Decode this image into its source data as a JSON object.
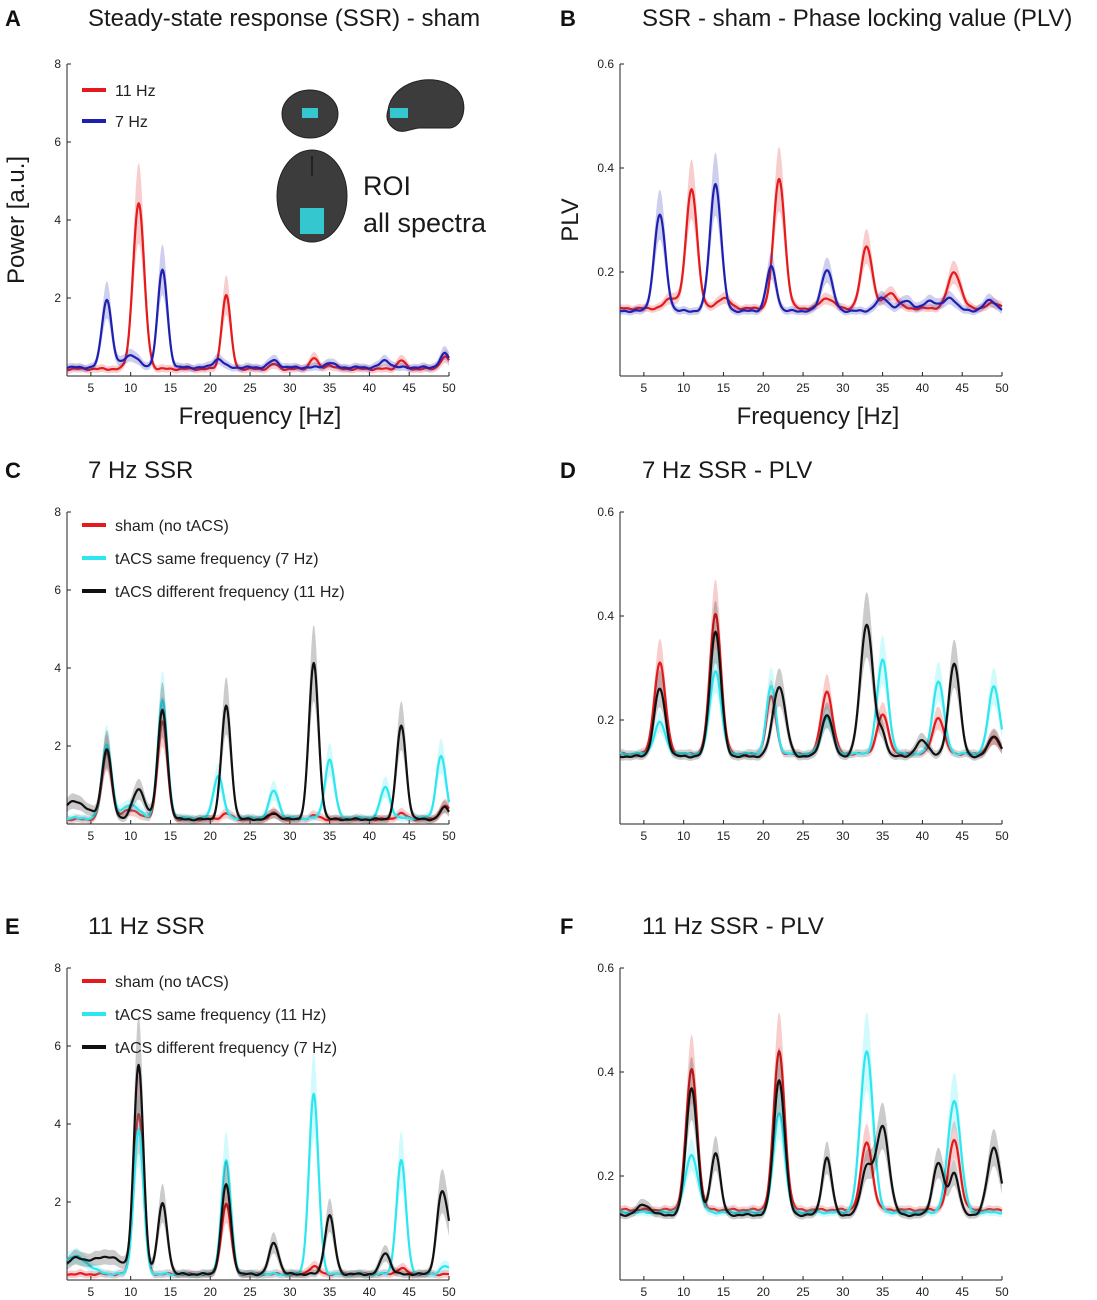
{
  "colors": {
    "red": "#e41a1c",
    "blue": "#2020b0",
    "cyan": "#2ee6f0",
    "black": "#111111",
    "roi": "#33d6e0"
  },
  "roi": {
    "line1": "ROI",
    "line2": "all spectra"
  },
  "chart_data": [
    {
      "id": "A",
      "letter": "A",
      "type": "line",
      "title": "Steady-state response (SSR) - sham",
      "xlabel": "Frequency [Hz]",
      "ylabel": "Power [a.u.]",
      "xlim": [
        2,
        50
      ],
      "ylim": [
        0,
        8
      ],
      "xticks": [
        5,
        10,
        15,
        20,
        25,
        30,
        35,
        40,
        45,
        50
      ],
      "yticks": [
        2,
        4,
        6,
        8
      ],
      "legend": "top-left",
      "series": [
        {
          "name": "11 Hz",
          "color": "red",
          "base": 0.18,
          "peaks": [
            [
              11,
              4.25,
              0.7
            ],
            [
              22,
              1.9,
              0.55
            ],
            [
              28,
              0.12,
              0.5
            ],
            [
              33,
              0.28,
              0.5
            ],
            [
              35,
              0.1,
              0.5
            ],
            [
              44,
              0.22,
              0.5
            ],
            [
              49.5,
              0.3,
              0.6
            ]
          ]
        },
        {
          "name": "7 Hz",
          "color": "blue",
          "base": 0.22,
          "peaks": [
            [
              7,
              1.75,
              0.6
            ],
            [
              10,
              0.32,
              0.9
            ],
            [
              14,
              2.5,
              0.6
            ],
            [
              21,
              0.22,
              0.6
            ],
            [
              28,
              0.18,
              0.6
            ],
            [
              35,
              0.12,
              0.6
            ],
            [
              42,
              0.18,
              0.6
            ],
            [
              49.5,
              0.35,
              0.6
            ]
          ]
        }
      ]
    },
    {
      "id": "B",
      "letter": "B",
      "type": "line",
      "title": "SSR - sham - Phase locking value (PLV)",
      "xlabel": "Frequency [Hz]",
      "ylabel": "PLV",
      "xlim": [
        2,
        50
      ],
      "ylim": [
        0,
        0.6
      ],
      "xticks": [
        5,
        10,
        15,
        20,
        25,
        30,
        35,
        40,
        45,
        50
      ],
      "yticks": [
        0.2,
        0.4,
        0.6
      ],
      "legend": "none",
      "series": [
        {
          "name": "11 Hz",
          "color": "red",
          "base": 0.13,
          "peaks": [
            [
              8.5,
              0.02,
              0.8
            ],
            [
              11,
              0.23,
              0.7
            ],
            [
              15,
              0.02,
              0.8
            ],
            [
              22,
              0.25,
              0.7
            ],
            [
              28,
              0.02,
              0.8
            ],
            [
              33,
              0.12,
              0.7
            ],
            [
              36,
              0.03,
              0.8
            ],
            [
              44,
              0.07,
              0.8
            ],
            [
              49,
              0.01,
              0.8
            ]
          ]
        },
        {
          "name": "7 Hz",
          "color": "blue",
          "base": 0.125,
          "peaks": [
            [
              7,
              0.185,
              0.7
            ],
            [
              14,
              0.245,
              0.7
            ],
            [
              21,
              0.085,
              0.6
            ],
            [
              28,
              0.08,
              0.7
            ],
            [
              35,
              0.025,
              0.8
            ],
            [
              38,
              0.02,
              0.8
            ],
            [
              41,
              0.02,
              0.8
            ],
            [
              43.5,
              0.025,
              0.8
            ],
            [
              48.5,
              0.02,
              0.8
            ]
          ]
        }
      ]
    },
    {
      "id": "C",
      "letter": "C",
      "type": "line",
      "title": "7 Hz SSR",
      "xlabel": "",
      "ylabel": "",
      "xlim": [
        2,
        50
      ],
      "ylim": [
        0,
        8
      ],
      "xticks": [
        5,
        10,
        15,
        20,
        25,
        30,
        35,
        40,
        45,
        50
      ],
      "yticks": [
        2,
        4,
        6,
        8
      ],
      "legend": "top-left",
      "series": [
        {
          "name": "sham (no tACS)",
          "color": "red",
          "base": 0.12,
          "peaks": [
            [
              7,
              1.7,
              0.6
            ],
            [
              10,
              0.25,
              1.0
            ],
            [
              14,
              2.5,
              0.6
            ],
            [
              22,
              0.15,
              0.6
            ],
            [
              28,
              0.15,
              0.6
            ],
            [
              33,
              0.1,
              0.6
            ],
            [
              44,
              0.15,
              0.6
            ],
            [
              49.5,
              0.35,
              0.6
            ]
          ]
        },
        {
          "name": "tACS same frequency (7 Hz)",
          "color": "cyan",
          "base": 0.15,
          "peaks": [
            [
              7,
              1.9,
              0.6
            ],
            [
              10,
              0.35,
              1.0
            ],
            [
              14,
              3.0,
              0.6
            ],
            [
              21,
              1.1,
              0.6
            ],
            [
              28,
              0.7,
              0.6
            ],
            [
              35,
              1.5,
              0.6
            ],
            [
              42,
              0.8,
              0.6
            ],
            [
              49,
              1.6,
              0.6
            ]
          ]
        },
        {
          "name": "tACS different frequency (11 Hz)",
          "color": "black",
          "base": 0.12,
          "peaks": [
            [
              3,
              0.45,
              1.6
            ],
            [
              7,
              1.8,
              0.6
            ],
            [
              11,
              0.75,
              0.8
            ],
            [
              14,
              2.8,
              0.6
            ],
            [
              22,
              2.9,
              0.6
            ],
            [
              28,
              0.15,
              0.6
            ],
            [
              33,
              4.0,
              0.6
            ],
            [
              44,
              2.4,
              0.6
            ],
            [
              49.5,
              0.3,
              0.6
            ]
          ]
        }
      ]
    },
    {
      "id": "D",
      "letter": "D",
      "type": "line",
      "title": "7 Hz SSR - PLV",
      "xlabel": "",
      "ylabel": "",
      "xlim": [
        2,
        50
      ],
      "ylim": [
        0,
        0.6
      ],
      "xticks": [
        5,
        10,
        15,
        20,
        25,
        30,
        35,
        40,
        45,
        50
      ],
      "yticks": [
        0.2,
        0.4,
        0.6
      ],
      "legend": "none",
      "series": [
        {
          "name": "sham (no tACS)",
          "color": "red",
          "base": 0.135,
          "peaks": [
            [
              7,
              0.175,
              0.7
            ],
            [
              14,
              0.27,
              0.7
            ],
            [
              21,
              0.11,
              0.6
            ],
            [
              28,
              0.12,
              0.7
            ],
            [
              35,
              0.075,
              0.7
            ],
            [
              42,
              0.07,
              0.7
            ],
            [
              49,
              0.03,
              0.7
            ]
          ]
        },
        {
          "name": "tACS same frequency (7 Hz)",
          "color": "cyan",
          "base": 0.135,
          "peaks": [
            [
              7,
              0.06,
              0.7
            ],
            [
              14,
              0.16,
              0.7
            ],
            [
              21,
              0.13,
              0.6
            ],
            [
              28,
              0.07,
              0.7
            ],
            [
              35,
              0.18,
              0.7
            ],
            [
              42,
              0.14,
              0.7
            ],
            [
              49,
              0.13,
              0.7
            ]
          ]
        },
        {
          "name": "tACS different frequency (11 Hz)",
          "color": "black",
          "base": 0.13,
          "peaks": [
            [
              7,
              0.13,
              0.7
            ],
            [
              14,
              0.24,
              0.7
            ],
            [
              22,
              0.135,
              0.8
            ],
            [
              28,
              0.08,
              0.7
            ],
            [
              33,
              0.255,
              0.8
            ],
            [
              35,
              0.04,
              0.5
            ],
            [
              40,
              0.03,
              0.8
            ],
            [
              44,
              0.18,
              0.7
            ],
            [
              49,
              0.04,
              0.7
            ]
          ]
        }
      ]
    },
    {
      "id": "E",
      "letter": "E",
      "type": "line",
      "title": "11 Hz SSR",
      "xlabel": "",
      "ylabel": "",
      "xlim": [
        2,
        50
      ],
      "ylim": [
        0,
        8
      ],
      "xticks": [
        5,
        10,
        15,
        20,
        25,
        30,
        35,
        40,
        45,
        50
      ],
      "yticks": [
        2,
        4,
        6,
        8
      ],
      "legend": "top-left",
      "series": [
        {
          "name": "sham (no tACS)",
          "color": "red",
          "base": 0.15,
          "peaks": [
            [
              11,
              4.1,
              0.6
            ],
            [
              22,
              1.8,
              0.6
            ],
            [
              33,
              0.2,
              0.6
            ],
            [
              44,
              0.15,
              0.6
            ]
          ]
        },
        {
          "name": "tACS same frequency (11 Hz)",
          "color": "cyan",
          "base": 0.15,
          "peaks": [
            [
              3,
              0.45,
              1.6
            ],
            [
              11,
              3.7,
              0.6
            ],
            [
              22,
              2.9,
              0.6
            ],
            [
              33,
              4.6,
              0.6
            ],
            [
              44,
              2.9,
              0.6
            ],
            [
              49.5,
              0.2,
              0.6
            ]
          ]
        },
        {
          "name": "tACS different frequency (7 Hz)",
          "color": "black",
          "base": 0.15,
          "peaks": [
            [
              3,
              0.35,
              1.2
            ],
            [
              7,
              0.45,
              2.0
            ],
            [
              11,
              5.3,
              0.6
            ],
            [
              14,
              1.8,
              0.6
            ],
            [
              22,
              2.3,
              0.6
            ],
            [
              28,
              0.8,
              0.6
            ],
            [
              35,
              1.5,
              0.6
            ],
            [
              42,
              0.55,
              0.6
            ],
            [
              49,
              1.85,
              0.6
            ],
            [
              50,
              0.9,
              0.6
            ]
          ]
        }
      ]
    },
    {
      "id": "F",
      "letter": "F",
      "type": "line",
      "title": "11 Hz SSR - PLV",
      "xlabel": "",
      "ylabel": "",
      "xlim": [
        2,
        50
      ],
      "ylim": [
        0,
        0.6
      ],
      "xticks": [
        5,
        10,
        15,
        20,
        25,
        30,
        35,
        40,
        45,
        50
      ],
      "yticks": [
        0.2,
        0.4,
        0.6
      ],
      "legend": "none",
      "series": [
        {
          "name": "sham (no tACS)",
          "color": "red",
          "base": 0.135,
          "peaks": [
            [
              11,
              0.27,
              0.7
            ],
            [
              22,
              0.305,
              0.7
            ],
            [
              33,
              0.13,
              0.7
            ],
            [
              44,
              0.135,
              0.7
            ]
          ]
        },
        {
          "name": "tACS same frequency (11 Hz)",
          "color": "cyan",
          "base": 0.13,
          "peaks": [
            [
              11,
              0.11,
              0.8
            ],
            [
              22,
              0.19,
              0.7
            ],
            [
              33,
              0.31,
              0.8
            ],
            [
              44,
              0.215,
              0.8
            ]
          ]
        },
        {
          "name": "tACS different frequency (7 Hz)",
          "color": "black",
          "base": 0.125,
          "peaks": [
            [
              5,
              0.02,
              0.8
            ],
            [
              11,
              0.245,
              0.7
            ],
            [
              14,
              0.12,
              0.6
            ],
            [
              22,
              0.26,
              0.7
            ],
            [
              28,
              0.11,
              0.6
            ],
            [
              33,
              0.09,
              0.7
            ],
            [
              35,
              0.17,
              0.8
            ],
            [
              42,
              0.1,
              0.7
            ],
            [
              44,
              0.08,
              0.6
            ],
            [
              49,
              0.13,
              0.8
            ]
          ]
        }
      ]
    }
  ]
}
